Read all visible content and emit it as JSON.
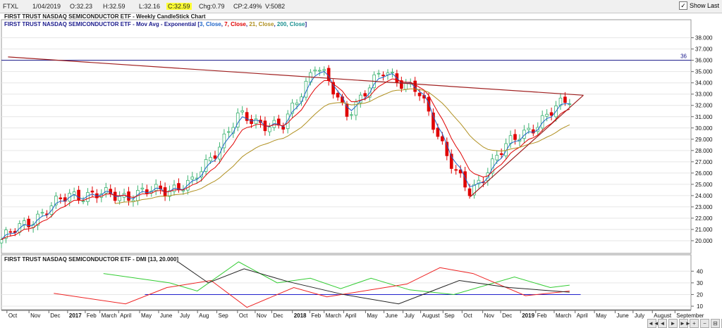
{
  "toolbar": {
    "symbol": "FTXL",
    "date": "1/04/2019",
    "open": "O:32.23",
    "high": "H:32.59",
    "low": "L:32.16",
    "close": "C:32.59",
    "change": "Chg:0.79",
    "change_pct": "CP:2.49%",
    "volume": "V:5082",
    "show_last_label": "Show Last",
    "show_last_checked": true
  },
  "colors": {
    "up_candle": "#3cb371",
    "down_candle": "#e00000",
    "ema3": "#1e64c8",
    "ema7": "#e00000",
    "ema21": "#b09020",
    "ema200": "#1a9090",
    "resistance": "#1a1a8c",
    "trendline": "#a02020",
    "di_plus": "#33cc33",
    "di_minus": "#ee2222",
    "adx": "#222222",
    "dmi_ref": "#2222cc"
  },
  "chart_data": [
    {
      "type": "candlestick",
      "title": "FIRST TRUST NASDAQ SEMICONDUCTOR ETF - Weekly CandleStick Chart",
      "legend": {
        "prefix": "FIRST TRUST NASDAQ SEMICONDUCTOR ETF - Mov Avg - Exponential [",
        "items": [
          {
            "text": "3, Close",
            "color": "#1e64c8"
          },
          {
            "text": ", ",
            "color": "#1a1a8c"
          },
          {
            "text": "7, Close",
            "color": "#e00000"
          },
          {
            "text": ", ",
            "color": "#1a1a8c"
          },
          {
            "text": "21, Close",
            "color": "#b09020"
          },
          {
            "text": ", ",
            "color": "#1a1a8c"
          },
          {
            "text": "200, Close",
            "color": "#1a9090"
          }
        ],
        "suffix": "]"
      },
      "y_ticks": [
        "38.000",
        "37.000",
        "36.000",
        "35.000",
        "34.000",
        "33.000",
        "32.000",
        "31.000",
        "30.000",
        "29.000",
        "28.000",
        "27.000",
        "26.000",
        "25.000",
        "24.000",
        "23.000",
        "22.000",
        "21.000",
        "20.000"
      ],
      "ylim": [
        19.0,
        38.6
      ],
      "resistance_line": {
        "value": 36.0,
        "label": "36"
      },
      "trendline_upper": [
        [
          0.24,
          36.3
        ],
        [
          21.1,
          32.9
        ]
      ],
      "trendline_lower": [
        [
          17.0,
          23.9
        ],
        [
          21.1,
          32.9
        ]
      ],
      "key_closes": [
        {
          "x": 0.0,
          "close": 20.1
        },
        {
          "x": 2.5,
          "close": 24.1
        },
        {
          "x": 4.6,
          "close": 24.0
        },
        {
          "x": 6.9,
          "close": 25.0
        },
        {
          "x": 8.6,
          "close": 31.0
        },
        {
          "x": 10.2,
          "close": 30.0
        },
        {
          "x": 11.4,
          "close": 35.8
        },
        {
          "x": 12.5,
          "close": 31.3
        },
        {
          "x": 13.9,
          "close": 35.1
        },
        {
          "x": 15.1,
          "close": 33.2
        },
        {
          "x": 16.5,
          "close": 26.0
        },
        {
          "x": 17.0,
          "close": 24.0
        },
        {
          "x": 18.0,
          "close": 27.8
        },
        {
          "x": 20.6,
          "close": 32.6
        }
      ]
    },
    {
      "type": "line",
      "title": "FIRST TRUST NASDAQ SEMICONDUCTOR ETF - DMI [13, 20.000]",
      "y_ticks": [
        "40",
        "30",
        "20",
        "10"
      ],
      "ylim": [
        7,
        48
      ],
      "reference_level": 20,
      "series": [
        {
          "key": "di_plus",
          "values": [
            [
              3.7,
              38
            ],
            [
              6.1,
              30
            ],
            [
              7.1,
              23
            ],
            [
              8.6,
              48
            ],
            [
              10.0,
              30
            ],
            [
              11.2,
              34
            ],
            [
              12.3,
              25
            ],
            [
              13.4,
              34
            ],
            [
              14.8,
              24
            ],
            [
              16.4,
              20
            ],
            [
              18.6,
              35
            ],
            [
              19.9,
              26
            ],
            [
              20.6,
              28
            ]
          ]
        },
        {
          "key": "di_minus",
          "values": [
            [
              1.9,
              21
            ],
            [
              4.5,
              12
            ],
            [
              6.0,
              26
            ],
            [
              7.6,
              32
            ],
            [
              8.9,
              9
            ],
            [
              10.6,
              26
            ],
            [
              11.8,
              18
            ],
            [
              14.7,
              29
            ],
            [
              15.9,
              43
            ],
            [
              17.1,
              38
            ],
            [
              19.0,
              19
            ],
            [
              20.6,
              23
            ]
          ]
        },
        {
          "key": "adx",
          "values": [
            [
              6.4,
              48
            ],
            [
              7.5,
              30
            ],
            [
              8.8,
              42
            ],
            [
              10.4,
              31
            ],
            [
              12.4,
              20
            ],
            [
              14.4,
              12
            ],
            [
              16.6,
              32
            ],
            [
              18.4,
              26
            ],
            [
              20.6,
              22
            ]
          ]
        }
      ]
    }
  ],
  "x_axis": {
    "labels": [
      {
        "text": "Oct",
        "x": 0.2
      },
      {
        "text": "Nov",
        "x": 1.0
      },
      {
        "text": "Dec",
        "x": 1.72
      },
      {
        "text": "2017",
        "x": 2.4,
        "bold": true
      },
      {
        "text": "Feb",
        "x": 3.04
      },
      {
        "text": "March",
        "x": 3.57
      },
      {
        "text": "April",
        "x": 4.25
      },
      {
        "text": "May",
        "x": 5.01
      },
      {
        "text": "June",
        "x": 5.7
      },
      {
        "text": "July",
        "x": 6.42
      },
      {
        "text": "Aug",
        "x": 7.11
      },
      {
        "text": "Sep",
        "x": 7.81
      },
      {
        "text": "Oct",
        "x": 8.56
      },
      {
        "text": "Nov",
        "x": 9.2
      },
      {
        "text": "Dec",
        "x": 9.8
      },
      {
        "text": "2018",
        "x": 10.55,
        "bold": true
      },
      {
        "text": "Feb",
        "x": 11.18
      },
      {
        "text": "March",
        "x": 11.7
      },
      {
        "text": "April",
        "x": 12.41
      },
      {
        "text": "May",
        "x": 13.2
      },
      {
        "text": "June",
        "x": 13.87
      },
      {
        "text": "July",
        "x": 14.56
      },
      {
        "text": "August",
        "x": 15.2
      },
      {
        "text": "Sep",
        "x": 16.01
      },
      {
        "text": "Oct",
        "x": 16.7
      },
      {
        "text": "Nov",
        "x": 17.45
      },
      {
        "text": "Dec",
        "x": 18.1
      },
      {
        "text": "2019",
        "x": 18.82,
        "bold": true
      },
      {
        "text": "Feb",
        "x": 19.37
      },
      {
        "text": "March",
        "x": 20.04
      },
      {
        "text": "April",
        "x": 20.8
      },
      {
        "text": "May",
        "x": 21.5
      },
      {
        "text": "June",
        "x": 22.25
      },
      {
        "text": "July",
        "x": 22.9
      },
      {
        "text": "August",
        "x": 23.6
      },
      {
        "text": "September",
        "x": 24.42
      }
    ]
  },
  "nav_buttons": [
    "◄◄",
    "◄",
    "►",
    "►►",
    "+",
    "−",
    "⊟",
    "◄",
    "►",
    "□"
  ]
}
